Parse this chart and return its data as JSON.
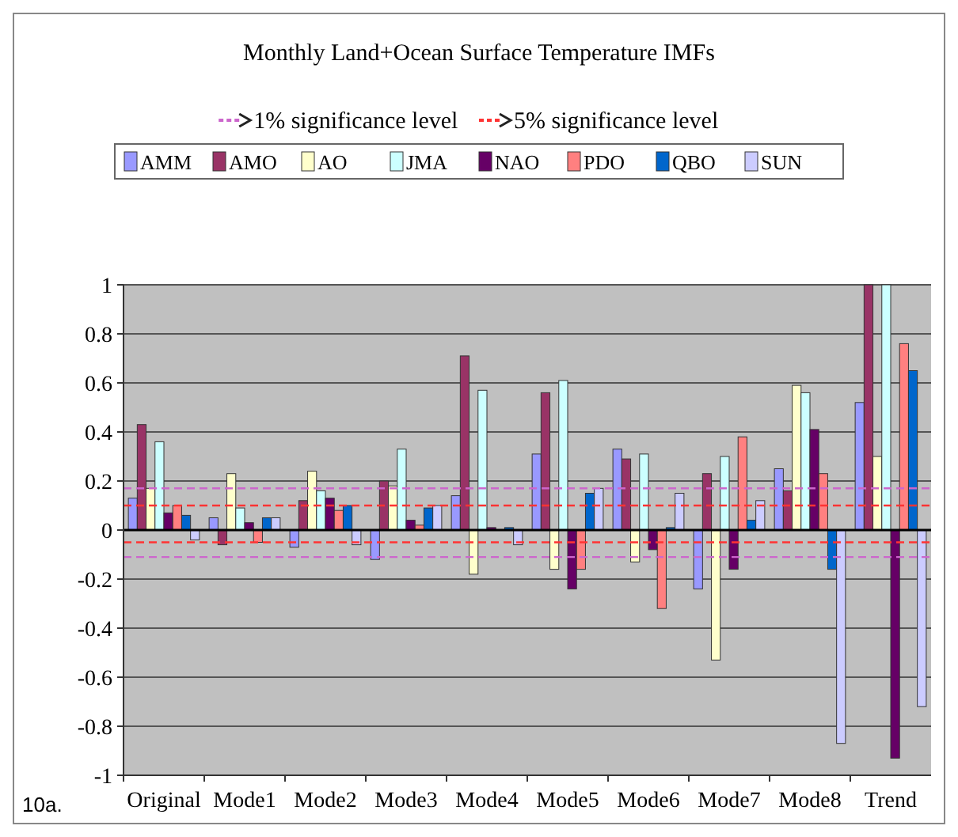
{
  "chart_data": {
    "type": "bar",
    "title": "Monthly Land+Ocean Surface Temperature IMFs",
    "categories": [
      "Original",
      "Mode1",
      "Mode2",
      "Mode3",
      "Mode4",
      "Mode5",
      "Mode6",
      "Mode7",
      "Mode8",
      "Trend"
    ],
    "series": [
      {
        "name": "AMM",
        "color": "#9999ff",
        "values": [
          0.13,
          0.05,
          -0.07,
          -0.12,
          0.14,
          0.31,
          0.33,
          -0.24,
          0.25,
          0.52
        ]
      },
      {
        "name": "AMO",
        "color": "#993366",
        "values": [
          0.43,
          -0.06,
          0.12,
          0.2,
          0.71,
          0.56,
          0.29,
          0.23,
          0.16,
          1.0
        ]
      },
      {
        "name": "AO",
        "color": "#ffffcc",
        "values": [
          0.17,
          0.23,
          0.24,
          0.18,
          -0.18,
          -0.16,
          -0.13,
          -0.53,
          0.59,
          0.3
        ]
      },
      {
        "name": "JMA",
        "color": "#ccffff",
        "values": [
          0.36,
          0.09,
          0.16,
          0.33,
          0.57,
          0.61,
          0.31,
          0.3,
          0.56,
          1.0
        ]
      },
      {
        "name": "NAO",
        "color": "#660066",
        "values": [
          0.07,
          0.03,
          0.13,
          0.04,
          0.01,
          -0.24,
          -0.08,
          -0.16,
          0.41,
          -0.93
        ]
      },
      {
        "name": "PDO",
        "color": "#ff8080",
        "values": [
          0.1,
          -0.05,
          0.08,
          0.02,
          null,
          -0.16,
          -0.32,
          0.38,
          0.23,
          0.76
        ]
      },
      {
        "name": "QBO",
        "color": "#0066cc",
        "values": [
          0.06,
          0.05,
          0.1,
          0.09,
          0.01,
          0.15,
          0.01,
          0.04,
          -0.16,
          0.65
        ]
      },
      {
        "name": "SUN",
        "color": "#ccccff",
        "values": [
          -0.04,
          0.05,
          -0.06,
          0.1,
          -0.06,
          0.17,
          0.15,
          0.12,
          -0.87,
          -0.72
        ]
      }
    ],
    "ylim": [
      -1,
      1
    ],
    "yticks": [
      -1,
      -0.8,
      -0.6,
      -0.4,
      -0.2,
      0,
      0.2,
      0.4,
      0.6,
      0.8,
      1
    ],
    "grid": "y",
    "legend": "top",
    "ref_lines": [
      {
        "axis": "y",
        "value": 0.17,
        "label": "1% significance level",
        "color": "#cc66cc",
        "line_style": "dashed"
      },
      {
        "axis": "y",
        "value": 0.1,
        "label": "5% significance level",
        "color": "#ff3333",
        "line_style": "dashed"
      },
      {
        "axis": "y",
        "value": -0.05,
        "label": null,
        "color": "#ff3333",
        "line_style": "dashed"
      },
      {
        "axis": "y",
        "value": -0.11,
        "label": null,
        "color": "#cc66cc",
        "line_style": "dashed"
      }
    ],
    "annotations": [
      "10a."
    ]
  }
}
